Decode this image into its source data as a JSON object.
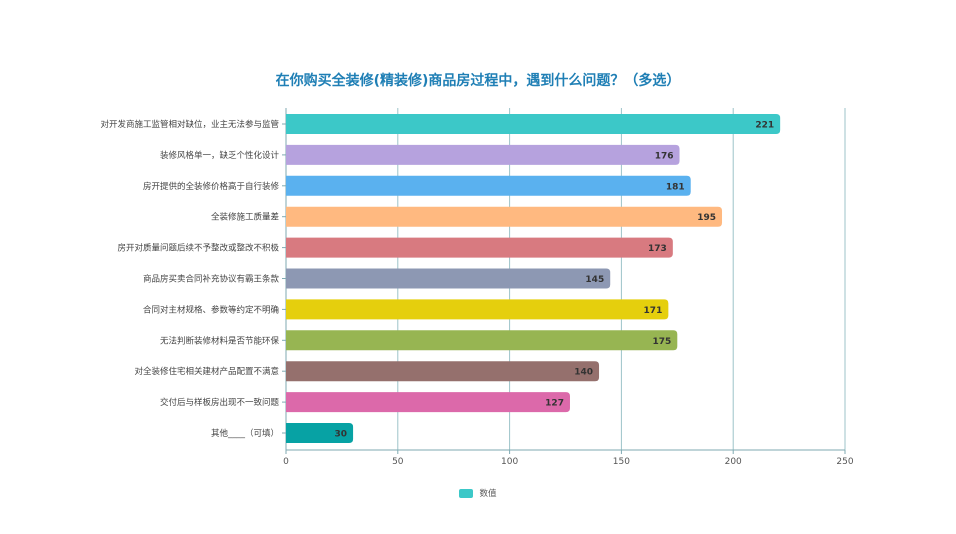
{
  "chart_data": {
    "type": "bar",
    "orientation": "horizontal",
    "title": "在你购买全装修(精装修)商品房过程中，遇到什么问题？（多选）",
    "categories": [
      "对开发商施工监管相对缺位，业主无法参与监管",
      "装修风格单一，缺乏个性化设计",
      "房开提供的全装修价格高于自行装修",
      "全装修施工质量差",
      "房开对质量问题后续不予整改或整改不积极",
      "商品房买卖合同补充协议有霸王条款",
      "合同对主材规格、参数等约定不明确",
      "无法判断装修材料是否节能环保",
      "对全装修住宅相关建材产品配置不满意",
      "交付后与样板房出现不一致问题",
      "其他____（可填）"
    ],
    "values": [
      221,
      176,
      181,
      195,
      173,
      145,
      171,
      175,
      140,
      127,
      30
    ],
    "bar_colors": [
      "#3cc8c8",
      "#b6a2de",
      "#5ab1ef",
      "#ffb980",
      "#d87a80",
      "#8d98b3",
      "#e5cf0d",
      "#97b552",
      "#95706d",
      "#dc69aa",
      "#07a2a4"
    ],
    "xlim": [
      0,
      250
    ],
    "x_ticks": [
      0,
      50,
      100,
      150,
      200,
      250
    ],
    "grid": true,
    "legend": {
      "position": "bottom",
      "entries": [
        {
          "name": "数值",
          "color": "#3cc8c8"
        }
      ]
    }
  }
}
